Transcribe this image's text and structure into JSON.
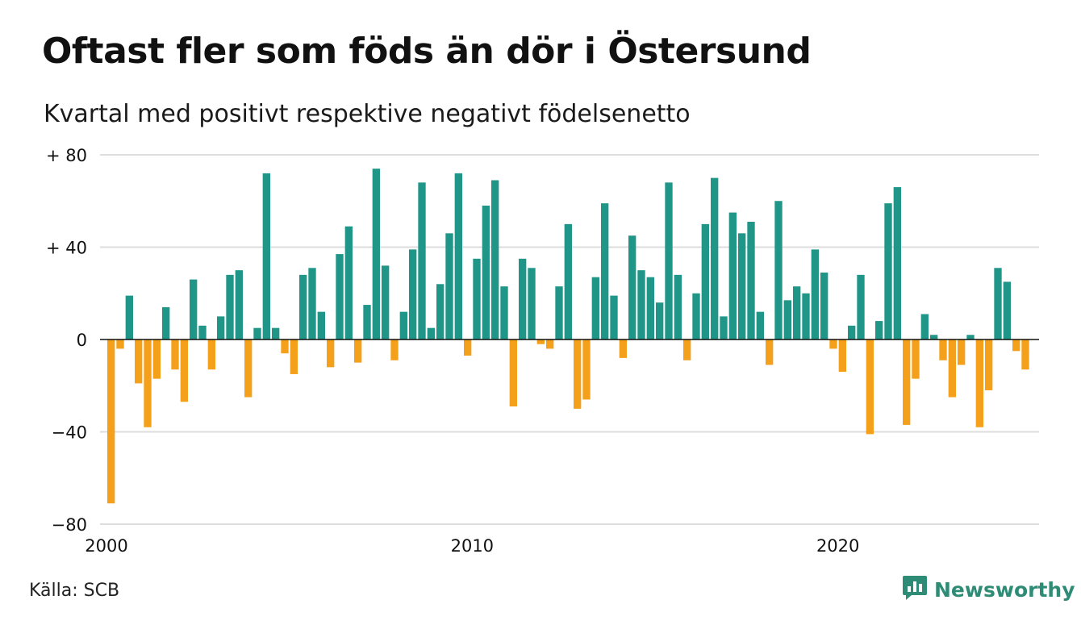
{
  "title": "Oftast fler som föds än dör i Östersund",
  "subtitle": "Kvartal med positivt respektive negativt födelsenetto",
  "source": "Källa: SCB",
  "brand": {
    "name": "Newsworthy",
    "icon": "newsworthy-logo-icon",
    "color": "#2e8b75"
  },
  "colors": {
    "positive": "#1f9688",
    "negative": "#f5a01a",
    "grid": "#dddddd",
    "zero": "#111111"
  },
  "chart_data": {
    "type": "bar",
    "title": "Oftast fler som föds än dör i Östersund",
    "subtitle": "Kvartal med positivt respektive negativt födelsenetto",
    "xlabel": "",
    "ylabel": "",
    "ylim": [
      -80,
      80
    ],
    "yticks": [
      80,
      40,
      0,
      -40,
      -80
    ],
    "ytick_labels": [
      "+ 80",
      "+ 40",
      "0",
      "−40",
      "−80"
    ],
    "x_start": 2000,
    "x_end": 2025.5,
    "periods_per_year": 4,
    "xticks": [
      2000,
      2010,
      2020
    ],
    "xtick_labels": [
      "2000",
      "2010",
      "2020"
    ],
    "grid": true,
    "values": [
      -71,
      -4,
      19,
      -19,
      -38,
      -17,
      14,
      -13,
      -27,
      26,
      6,
      -13,
      10,
      28,
      30,
      -25,
      5,
      72,
      5,
      -6,
      -15,
      28,
      31,
      12,
      -12,
      37,
      49,
      -10,
      15,
      74,
      32,
      -9,
      12,
      39,
      68,
      5,
      24,
      46,
      72,
      -7,
      35,
      58,
      69,
      23,
      -29,
      35,
      31,
      -2,
      -4,
      23,
      50,
      -30,
      -26,
      27,
      59,
      19,
      -8,
      45,
      30,
      27,
      16,
      68,
      28,
      -9,
      20,
      50,
      70,
      10,
      55,
      46,
      51,
      12,
      -11,
      60,
      17,
      23,
      20,
      39,
      29,
      -4,
      -14,
      6,
      28,
      -41,
      8,
      59,
      66,
      -37,
      -17,
      11,
      2,
      -9,
      -25,
      -11,
      2,
      -38,
      -22,
      31,
      25,
      -5,
      -13
    ]
  }
}
